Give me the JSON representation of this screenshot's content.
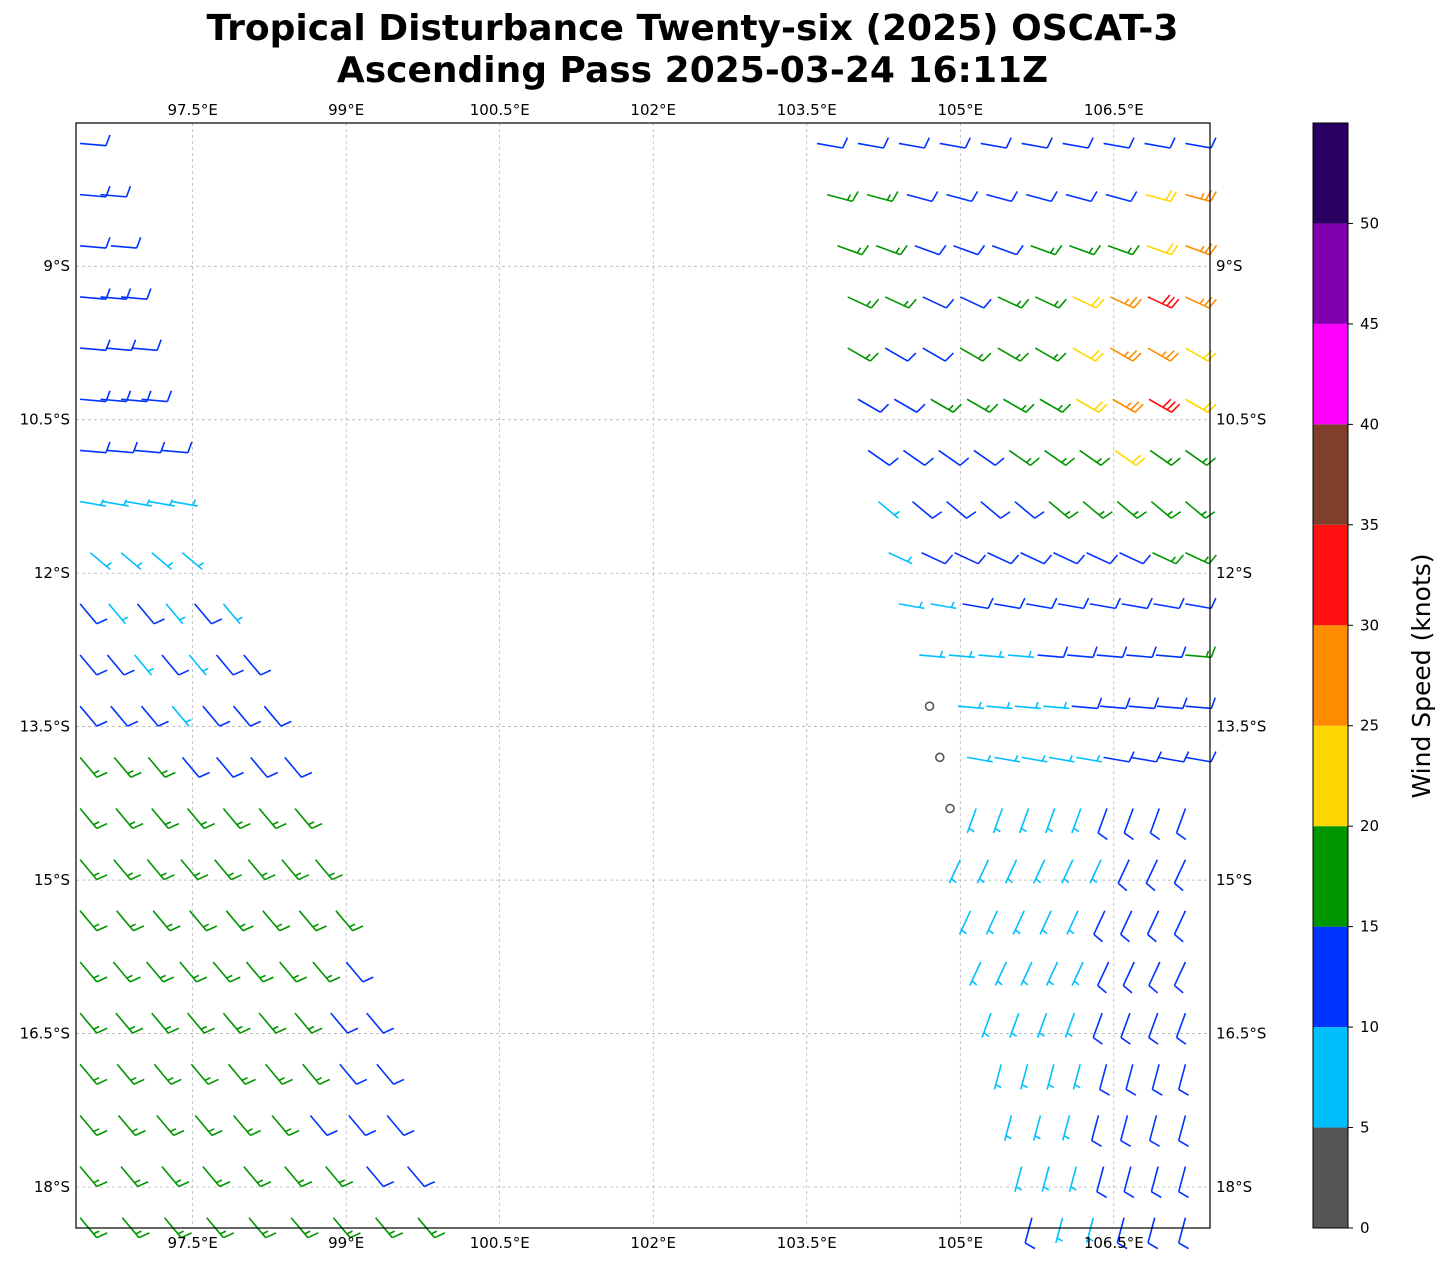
{
  "title_line1": "Tropical Disturbance Twenty-six (2025) OSCAT-3",
  "title_line2": "Ascending Pass 2025-03-24 16:11Z",
  "chart_data": {
    "type": "wind-barb-map",
    "title": "Tropical Disturbance Twenty-six (2025) OSCAT-3 Ascending Pass 2025-03-24 16:11Z",
    "lon_range": [
      96.36,
      107.44
    ],
    "lat_range": [
      -18.4,
      -7.6
    ],
    "lon_ticks": [
      97.5,
      99,
      100.5,
      102,
      103.5,
      105,
      106.5
    ],
    "lon_tick_labels": [
      "97.5°E",
      "99°E",
      "100.5°E",
      "102°E",
      "103.5°E",
      "105°E",
      "106.5°E"
    ],
    "lat_ticks": [
      -9,
      -10.5,
      -12,
      -13.5,
      -15,
      -16.5,
      -18
    ],
    "lat_tick_labels": [
      "9°S",
      "10.5°S",
      "12°S",
      "13.5°S",
      "15°S",
      "16.5°S",
      "18°S"
    ],
    "grid": true,
    "colorbar": {
      "label": "Wind Speed (knots)",
      "bounds": [
        0,
        5,
        10,
        15,
        20,
        25,
        30,
        35,
        40,
        45,
        50,
        55
      ],
      "tick_labels": [
        "0",
        "5",
        "10",
        "15",
        "20",
        "25",
        "30",
        "35",
        "40",
        "45",
        "50"
      ],
      "colors": [
        "#555555",
        "#00bfff",
        "#0033ff",
        "#009600",
        "#ffd700",
        "#ff8c00",
        "#ff0f0f",
        "#7f3f2a",
        "#ff00ff",
        "#8000b0",
        "#2a0060"
      ]
    },
    "barb_rows_description": "each row: lat (deg, negative=S), lon0..lon1 span, speeds (kt) evenly spaced, dir = direction wind is from (deg)",
    "barb_rows": [
      {
        "lat": -7.8,
        "lon0": 103.6,
        "lon1": 107.2,
        "speeds": [
          12,
          12,
          12,
          14,
          12,
          12,
          12,
          12,
          12,
          12
        ],
        "dir": 100
      },
      {
        "lat": -8.3,
        "lon0": 103.7,
        "lon1": 107.2,
        "speeds": [
          16,
          16,
          14,
          12,
          12,
          12,
          12,
          14,
          22,
          26
        ],
        "dir": 105
      },
      {
        "lat": -8.8,
        "lon0": 103.8,
        "lon1": 107.2,
        "speeds": [
          16,
          16,
          12,
          12,
          12,
          16,
          18,
          18,
          22,
          26
        ],
        "dir": 110
      },
      {
        "lat": -9.3,
        "lon0": 103.9,
        "lon1": 107.2,
        "speeds": [
          16,
          16,
          14,
          12,
          16,
          18,
          22,
          28,
          32,
          28
        ],
        "dir": 115
      },
      {
        "lat": -9.8,
        "lon0": 103.9,
        "lon1": 107.2,
        "speeds": [
          16,
          14,
          12,
          16,
          18,
          18,
          22,
          26,
          28,
          24
        ],
        "dir": 120
      },
      {
        "lat": -10.3,
        "lon0": 104.0,
        "lon1": 107.2,
        "speeds": [
          12,
          12,
          16,
          18,
          18,
          16,
          22,
          26,
          32,
          22
        ],
        "dir": 120
      },
      {
        "lat": -10.8,
        "lon0": 104.1,
        "lon1": 107.2,
        "speeds": [
          12,
          12,
          12,
          14,
          16,
          18,
          16,
          22,
          18,
          18
        ],
        "dir": 125
      },
      {
        "lat": -11.3,
        "lon0": 104.2,
        "lon1": 107.2,
        "speeds": [
          8,
          12,
          12,
          12,
          14,
          18,
          16,
          18,
          16,
          18
        ],
        "dir": 130
      },
      {
        "lat": -11.8,
        "lon0": 104.3,
        "lon1": 107.2,
        "speeds": [
          8,
          12,
          12,
          12,
          12,
          12,
          14,
          14,
          18,
          18
        ],
        "dir": 115
      },
      {
        "lat": -12.3,
        "lon0": 104.4,
        "lon1": 107.2,
        "speeds": [
          8,
          8,
          12,
          12,
          12,
          12,
          12,
          12,
          12,
          14
        ],
        "dir": 100
      },
      {
        "lat": -12.8,
        "lon0": 104.6,
        "lon1": 107.2,
        "speeds": [
          6,
          8,
          8,
          8,
          12,
          12,
          12,
          12,
          12,
          16
        ],
        "dir": 95
      },
      {
        "lat": -13.3,
        "lon0": 104.7,
        "lon1": 107.2,
        "speeds": [
          3,
          8,
          8,
          8,
          8,
          12,
          12,
          12,
          12,
          12
        ],
        "dir": 95
      },
      {
        "lat": -13.8,
        "lon0": 104.8,
        "lon1": 107.2,
        "speeds": [
          3,
          8,
          8,
          8,
          8,
          8,
          12,
          12,
          12,
          12
        ],
        "dir": 100
      },
      {
        "lat": -14.3,
        "lon0": 104.9,
        "lon1": 107.2,
        "speeds": [
          3,
          8,
          8,
          8,
          8,
          8,
          12,
          12,
          12,
          12
        ],
        "dir": 200
      },
      {
        "lat": -14.8,
        "lon0": 105.0,
        "lon1": 107.2,
        "speeds": [
          8,
          8,
          8,
          8,
          8,
          8,
          12,
          12,
          12
        ],
        "dir": 205
      },
      {
        "lat": -15.3,
        "lon0": 105.1,
        "lon1": 107.2,
        "speeds": [
          8,
          8,
          8,
          8,
          8,
          12,
          12,
          12,
          12
        ],
        "dir": 205
      },
      {
        "lat": -15.8,
        "lon0": 105.2,
        "lon1": 107.2,
        "speeds": [
          8,
          8,
          8,
          8,
          8,
          12,
          12,
          12,
          12
        ],
        "dir": 205
      },
      {
        "lat": -16.3,
        "lon0": 105.3,
        "lon1": 107.2,
        "speeds": [
          8,
          8,
          8,
          8,
          12,
          12,
          12,
          12
        ],
        "dir": 200
      },
      {
        "lat": -16.8,
        "lon0": 105.4,
        "lon1": 107.2,
        "speeds": [
          8,
          8,
          8,
          8,
          12,
          12,
          12,
          12
        ],
        "dir": 195
      },
      {
        "lat": -17.3,
        "lon0": 105.5,
        "lon1": 107.2,
        "speeds": [
          8,
          8,
          8,
          12,
          12,
          12,
          12
        ],
        "dir": 195
      },
      {
        "lat": -17.8,
        "lon0": 105.6,
        "lon1": 107.2,
        "speeds": [
          8,
          8,
          8,
          12,
          12,
          12,
          12
        ],
        "dir": 195
      },
      {
        "lat": -18.3,
        "lon0": 105.7,
        "lon1": 107.2,
        "speeds": [
          12,
          8,
          8,
          12,
          12,
          12
        ],
        "dir": 195
      },
      {
        "lat": -7.8,
        "lon0": 96.4,
        "lon1": 96.5,
        "speeds": [
          12
        ],
        "dir": 95
      },
      {
        "lat": -8.3,
        "lon0": 96.4,
        "lon1": 96.6,
        "speeds": [
          12,
          12
        ],
        "dir": 95
      },
      {
        "lat": -8.8,
        "lon0": 96.4,
        "lon1": 96.7,
        "speeds": [
          12,
          12
        ],
        "dir": 95
      },
      {
        "lat": -9.3,
        "lon0": 96.4,
        "lon1": 96.8,
        "speeds": [
          12,
          12,
          12
        ],
        "dir": 95
      },
      {
        "lat": -9.8,
        "lon0": 96.4,
        "lon1": 96.9,
        "speeds": [
          12,
          12,
          12
        ],
        "dir": 95
      },
      {
        "lat": -10.3,
        "lon0": 96.4,
        "lon1": 97.0,
        "speeds": [
          12,
          12,
          12,
          12
        ],
        "dir": 95
      },
      {
        "lat": -10.8,
        "lon0": 96.4,
        "lon1": 97.2,
        "speeds": [
          12,
          12,
          12,
          12
        ],
        "dir": 95
      },
      {
        "lat": -11.3,
        "lon0": 96.4,
        "lon1": 97.3,
        "speeds": [
          8,
          8,
          8,
          8,
          8
        ],
        "dir": 100
      },
      {
        "lat": -11.8,
        "lon0": 96.5,
        "lon1": 97.4,
        "speeds": [
          8,
          8,
          8,
          8
        ],
        "dir": 130
      },
      {
        "lat": -12.3,
        "lon0": 96.4,
        "lon1": 97.8,
        "speeds": [
          12,
          8,
          12,
          8,
          12,
          8
        ],
        "dir": 140
      },
      {
        "lat": -12.8,
        "lon0": 96.4,
        "lon1": 98.0,
        "speeds": [
          12,
          12,
          8,
          12,
          8,
          12,
          12
        ],
        "dir": 140
      },
      {
        "lat": -13.3,
        "lon0": 96.4,
        "lon1": 98.2,
        "speeds": [
          12,
          12,
          12,
          8,
          12,
          12,
          12
        ],
        "dir": 140
      },
      {
        "lat": -13.8,
        "lon0": 96.4,
        "lon1": 98.4,
        "speeds": [
          16,
          16,
          16,
          12,
          12,
          12,
          12
        ],
        "dir": 140
      },
      {
        "lat": -14.3,
        "lon0": 96.4,
        "lon1": 98.5,
        "speeds": [
          16,
          16,
          16,
          16,
          16,
          16,
          16
        ],
        "dir": 140
      },
      {
        "lat": -14.8,
        "lon0": 96.4,
        "lon1": 98.7,
        "speeds": [
          16,
          16,
          16,
          16,
          16,
          16,
          16,
          16
        ],
        "dir": 140
      },
      {
        "lat": -15.3,
        "lon0": 96.4,
        "lon1": 98.9,
        "speeds": [
          16,
          16,
          16,
          16,
          16,
          16,
          16,
          16
        ],
        "dir": 140
      },
      {
        "lat": -15.8,
        "lon0": 96.4,
        "lon1": 99.0,
        "speeds": [
          16,
          16,
          16,
          16,
          16,
          16,
          16,
          16,
          12
        ],
        "dir": 140
      },
      {
        "lat": -16.3,
        "lon0": 96.4,
        "lon1": 99.2,
        "speeds": [
          16,
          16,
          16,
          16,
          16,
          16,
          16,
          12,
          12
        ],
        "dir": 140
      },
      {
        "lat": -16.8,
        "lon0": 96.4,
        "lon1": 99.3,
        "speeds": [
          16,
          16,
          16,
          16,
          16,
          16,
          16,
          12,
          12
        ],
        "dir": 140
      },
      {
        "lat": -17.3,
        "lon0": 96.4,
        "lon1": 99.4,
        "speeds": [
          16,
          16,
          16,
          16,
          16,
          16,
          12,
          12,
          12
        ],
        "dir": 140
      },
      {
        "lat": -17.8,
        "lon0": 96.4,
        "lon1": 99.6,
        "speeds": [
          16,
          16,
          16,
          16,
          16,
          16,
          16,
          12,
          12
        ],
        "dir": 140
      },
      {
        "lat": -18.3,
        "lon0": 96.4,
        "lon1": 99.7,
        "speeds": [
          16,
          16,
          16,
          16,
          16,
          16,
          16,
          16,
          16
        ],
        "dir": 140
      }
    ]
  }
}
